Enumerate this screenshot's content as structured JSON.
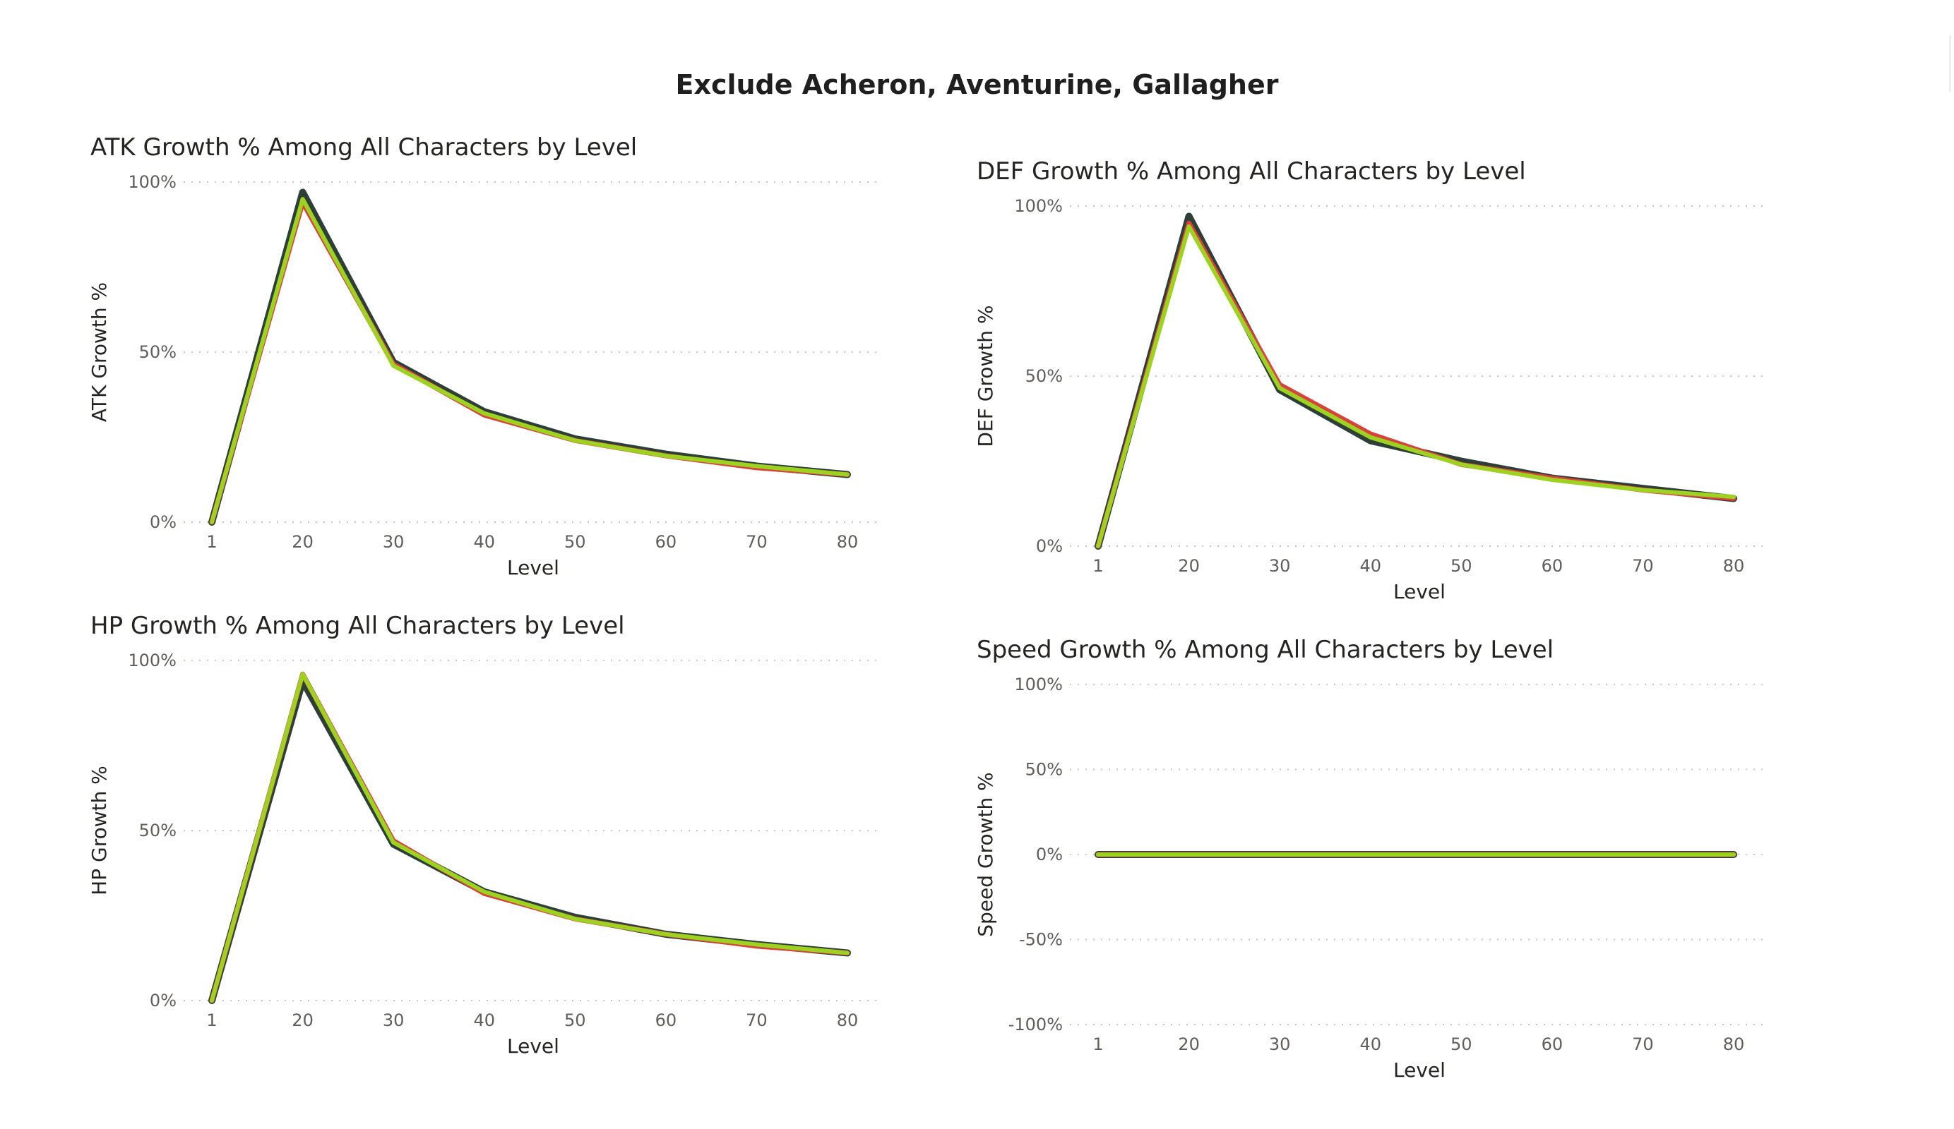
{
  "page": {
    "title": "Exclude Acheron, Aventurine, Gallagher"
  },
  "colors": {
    "series": [
      "#2e3f38",
      "#d8423c",
      "#9dd320"
    ],
    "grid": "#c8c6c4"
  },
  "chart_data": [
    {
      "type": "line",
      "title": "ATK Growth % Among All Characters by Level",
      "xlabel": "Level",
      "ylabel": "ATK Growth %",
      "categories": [
        "1",
        "20",
        "30",
        "40",
        "50",
        "60",
        "70",
        "80"
      ],
      "y_ticks": [
        "0%",
        "50%",
        "100%"
      ],
      "ylim": [
        0,
        100
      ],
      "grid": true,
      "series": [
        {
          "values": [
            0,
            97,
            47,
            32.5,
            24.5,
            20,
            16.5,
            14
          ]
        },
        {
          "values": [
            0,
            94,
            46.5,
            31.5,
            24,
            19.5,
            16,
            14
          ]
        },
        {
          "values": [
            0,
            95,
            46,
            32,
            24,
            19.5,
            16.5,
            14
          ]
        }
      ]
    },
    {
      "type": "line",
      "title": "DEF Growth % Among All Characters by Level",
      "xlabel": "Level",
      "ylabel": "DEF Growth %",
      "categories": [
        "1",
        "20",
        "30",
        "40",
        "50",
        "60",
        "70",
        "80"
      ],
      "y_ticks": [
        "0%",
        "50%",
        "100%"
      ],
      "ylim": [
        0,
        100
      ],
      "grid": true,
      "series": [
        {
          "values": [
            0,
            97,
            46,
            31,
            25,
            20,
            17,
            14
          ]
        },
        {
          "values": [
            0,
            95,
            47.5,
            33,
            24,
            20,
            16.5,
            14
          ]
        },
        {
          "values": [
            0,
            94,
            46.5,
            32,
            24,
            19.5,
            16.5,
            14.5
          ]
        }
      ]
    },
    {
      "type": "line",
      "title": "HP Growth % Among All Characters by Level",
      "xlabel": "Level",
      "ylabel": "HP Growth %",
      "categories": [
        "1",
        "20",
        "30",
        "40",
        "50",
        "60",
        "70",
        "80"
      ],
      "y_ticks": [
        "0%",
        "50%",
        "100%"
      ],
      "ylim": [
        0,
        100
      ],
      "grid": true,
      "series": [
        {
          "values": [
            0,
            94,
            46,
            32,
            24.5,
            19.5,
            16.5,
            14
          ]
        },
        {
          "values": [
            0,
            96,
            47,
            31.5,
            24,
            19.5,
            16,
            14
          ]
        },
        {
          "values": [
            0,
            96,
            46.5,
            32,
            24,
            19.5,
            16.5,
            14
          ]
        }
      ]
    },
    {
      "type": "line",
      "title": "Speed Growth % Among All Characters by Level",
      "xlabel": "Level",
      "ylabel": "Speed Growth %",
      "categories": [
        "1",
        "20",
        "30",
        "40",
        "50",
        "60",
        "70",
        "80"
      ],
      "y_ticks": [
        "-100%",
        "-50%",
        "0%",
        "50%",
        "100%"
      ],
      "ylim": [
        -100,
        100
      ],
      "grid": true,
      "series": [
        {
          "values": [
            0,
            0,
            0,
            0,
            0,
            0,
            0,
            0
          ]
        },
        {
          "values": [
            0,
            0,
            0,
            0,
            0,
            0,
            0,
            0
          ]
        },
        {
          "values": [
            0,
            0,
            0,
            0,
            0,
            0,
            0,
            0
          ]
        }
      ]
    }
  ]
}
